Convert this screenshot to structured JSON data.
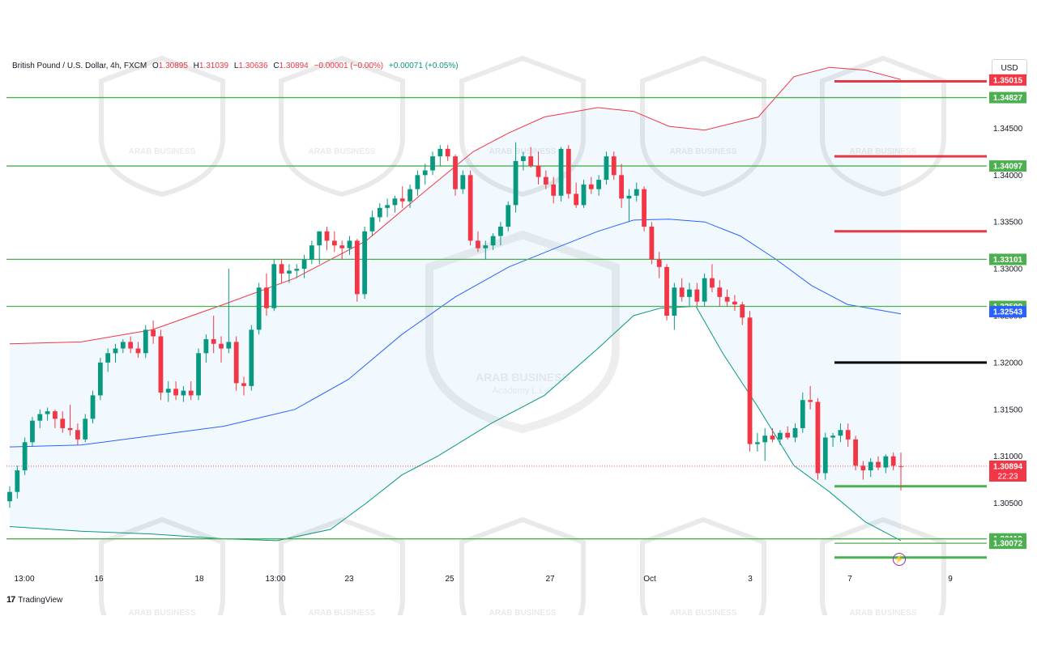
{
  "header": {
    "symbol": "British Pound / U.S. Dollar, 4h, FXCM",
    "open_label": "O",
    "open": "1.30895",
    "high_label": "H",
    "high": "1.31039",
    "low_label": "L",
    "low": "1.30636",
    "close_label": "C",
    "close": "1.30894",
    "change": "−0.00001 (−0.00%)",
    "change2": "+0.00071 (+0.05%)"
  },
  "currency_button": "USD",
  "branding": {
    "logo_text": "TradingView",
    "watermark_text": "ARAB BUSINESS",
    "watermark_sub": "Academy L.L.C"
  },
  "colors": {
    "up": "#089981",
    "down": "#f23645",
    "bb_upper": "#f23645",
    "bb_lower": "#089981",
    "bb_basis": "#2962ff",
    "bb_fill": "#2196f3",
    "support": "#4caf50",
    "resistance": "#e53945",
    "pivot": "#000000"
  },
  "chart_data": {
    "type": "candlestick",
    "symbol": "GBPUSD",
    "timeframe": "4h",
    "ylim": [
      1.2965,
      1.3535
    ],
    "y_ticks": [
      "1.35000",
      "1.34500",
      "1.34000",
      "1.33500",
      "1.33000",
      "1.32500",
      "1.32000",
      "1.31500",
      "1.31000",
      "1.30500"
    ],
    "x_ticks": [
      "13:00",
      "16",
      "18",
      "13:00",
      "23",
      "25",
      "27",
      "Oct",
      "3",
      "7",
      "9"
    ],
    "candles": [
      [
        1.3052,
        1.3068,
        1.3045,
        1.3062
      ],
      [
        1.3062,
        1.309,
        1.3055,
        1.3085
      ],
      [
        1.3085,
        1.312,
        1.308,
        1.3115
      ],
      [
        1.3115,
        1.3142,
        1.311,
        1.3138
      ],
      [
        1.3138,
        1.315,
        1.313,
        1.3145
      ],
      [
        1.3145,
        1.3152,
        1.3138,
        1.3148
      ],
      [
        1.3148,
        1.315,
        1.313,
        1.314
      ],
      [
        1.314,
        1.3148,
        1.3125,
        1.313
      ],
      [
        1.313,
        1.3155,
        1.3122,
        1.3128
      ],
      [
        1.3128,
        1.3135,
        1.3112,
        1.3118
      ],
      [
        1.3118,
        1.3145,
        1.3115,
        1.314
      ],
      [
        1.314,
        1.317,
        1.3135,
        1.3165
      ],
      [
        1.3165,
        1.3205,
        1.316,
        1.32
      ],
      [
        1.32,
        1.3215,
        1.319,
        1.321
      ],
      [
        1.321,
        1.322,
        1.32,
        1.3215
      ],
      [
        1.3215,
        1.3225,
        1.321,
        1.3222
      ],
      [
        1.3222,
        1.3228,
        1.321,
        1.3215
      ],
      [
        1.3215,
        1.3222,
        1.3205,
        1.321
      ],
      [
        1.321,
        1.324,
        1.3205,
        1.3235
      ],
      [
        1.3235,
        1.3245,
        1.322,
        1.3228
      ],
      [
        1.3228,
        1.3235,
        1.316,
        1.3168
      ],
      [
        1.3168,
        1.318,
        1.3158,
        1.3172
      ],
      [
        1.3172,
        1.318,
        1.316,
        1.3165
      ],
      [
        1.3165,
        1.3175,
        1.3158,
        1.317
      ],
      [
        1.317,
        1.318,
        1.316,
        1.3165
      ],
      [
        1.3165,
        1.3215,
        1.316,
        1.321
      ],
      [
        1.321,
        1.323,
        1.32,
        1.3225
      ],
      [
        1.3225,
        1.325,
        1.321,
        1.322
      ],
      [
        1.322,
        1.3228,
        1.32,
        1.3215
      ],
      [
        1.3215,
        1.33,
        1.321,
        1.3222
      ],
      [
        1.3222,
        1.3228,
        1.317,
        1.3178
      ],
      [
        1.3178,
        1.3185,
        1.3165,
        1.3175
      ],
      [
        1.3175,
        1.324,
        1.317,
        1.3235
      ],
      [
        1.3235,
        1.3285,
        1.323,
        1.328
      ],
      [
        1.328,
        1.3295,
        1.325,
        1.3258
      ],
      [
        1.3258,
        1.331,
        1.3255,
        1.3305
      ],
      [
        1.3305,
        1.331,
        1.3285,
        1.3295
      ],
      [
        1.3295,
        1.3305,
        1.3285,
        1.3298
      ],
      [
        1.3298,
        1.3305,
        1.329,
        1.33
      ],
      [
        1.33,
        1.3315,
        1.329,
        1.331
      ],
      [
        1.331,
        1.333,
        1.3305,
        1.3325
      ],
      [
        1.3325,
        1.334,
        1.3305,
        1.334
      ],
      [
        1.334,
        1.3345,
        1.332,
        1.333
      ],
      [
        1.333,
        1.334,
        1.3318,
        1.3325
      ],
      [
        1.3325,
        1.333,
        1.331,
        1.3322
      ],
      [
        1.3322,
        1.3335,
        1.3315,
        1.333
      ],
      [
        1.333,
        1.3332,
        1.3265,
        1.3273
      ],
      [
        1.3273,
        1.3345,
        1.3268,
        1.334
      ],
      [
        1.334,
        1.3362,
        1.3335,
        1.3355
      ],
      [
        1.3355,
        1.337,
        1.335,
        1.3365
      ],
      [
        1.3365,
        1.3375,
        1.3355,
        1.3368
      ],
      [
        1.3368,
        1.3378,
        1.336,
        1.3375
      ],
      [
        1.3375,
        1.3388,
        1.3365,
        1.3372
      ],
      [
        1.3372,
        1.339,
        1.3365,
        1.3385
      ],
      [
        1.3385,
        1.3405,
        1.3378,
        1.34
      ],
      [
        1.34,
        1.3412,
        1.339,
        1.3405
      ],
      [
        1.3405,
        1.3425,
        1.34,
        1.342
      ],
      [
        1.342,
        1.3432,
        1.341,
        1.3428
      ],
      [
        1.3428,
        1.3432,
        1.3415,
        1.342
      ],
      [
        1.342,
        1.3422,
        1.3378,
        1.3385
      ],
      [
        1.3385,
        1.3405,
        1.338,
        1.34
      ],
      [
        1.34,
        1.3405,
        1.3325,
        1.333
      ],
      [
        1.333,
        1.334,
        1.3318,
        1.3322
      ],
      [
        1.3322,
        1.333,
        1.331,
        1.3325
      ],
      [
        1.3325,
        1.3338,
        1.332,
        1.3335
      ],
      [
        1.3335,
        1.335,
        1.3325,
        1.3345
      ],
      [
        1.3345,
        1.3372,
        1.334,
        1.3368
      ],
      [
        1.3368,
        1.3435,
        1.336,
        1.3415
      ],
      [
        1.3415,
        1.3425,
        1.3405,
        1.342
      ],
      [
        1.342,
        1.343,
        1.3408,
        1.341
      ],
      [
        1.341,
        1.3425,
        1.339,
        1.3398
      ],
      [
        1.3398,
        1.3405,
        1.3385,
        1.339
      ],
      [
        1.339,
        1.3398,
        1.337,
        1.3378
      ],
      [
        1.3378,
        1.343,
        1.3372,
        1.3428
      ],
      [
        1.3428,
        1.3432,
        1.3375,
        1.338
      ],
      [
        1.338,
        1.3392,
        1.3365,
        1.3368
      ],
      [
        1.3368,
        1.3395,
        1.3365,
        1.339
      ],
      [
        1.339,
        1.3398,
        1.338,
        1.3385
      ],
      [
        1.3385,
        1.34,
        1.3378,
        1.3395
      ],
      [
        1.3395,
        1.3425,
        1.339,
        1.342
      ],
      [
        1.342,
        1.3425,
        1.3395,
        1.34
      ],
      [
        1.34,
        1.3412,
        1.3365,
        1.3375
      ],
      [
        1.3375,
        1.3385,
        1.335,
        1.3378
      ],
      [
        1.3378,
        1.3392,
        1.3372,
        1.3385
      ],
      [
        1.3385,
        1.3388,
        1.334,
        1.3345
      ],
      [
        1.3345,
        1.335,
        1.3305,
        1.331
      ],
      [
        1.331,
        1.3318,
        1.329,
        1.3302
      ],
      [
        1.3302,
        1.3305,
        1.3245,
        1.325
      ],
      [
        1.325,
        1.3285,
        1.3235,
        1.328
      ],
      [
        1.328,
        1.329,
        1.3265,
        1.327
      ],
      [
        1.327,
        1.3285,
        1.326,
        1.3278
      ],
      [
        1.3278,
        1.3285,
        1.326,
        1.3265
      ],
      [
        1.3265,
        1.3295,
        1.326,
        1.329
      ],
      [
        1.329,
        1.3305,
        1.3275,
        1.328
      ],
      [
        1.328,
        1.3288,
        1.326,
        1.327
      ],
      [
        1.327,
        1.3278,
        1.326,
        1.3265
      ],
      [
        1.3265,
        1.3272,
        1.3255,
        1.3262
      ],
      [
        1.3262,
        1.3265,
        1.324,
        1.3248
      ],
      [
        1.3248,
        1.3255,
        1.3105,
        1.3113
      ],
      [
        1.3113,
        1.3125,
        1.3105,
        1.3115
      ],
      [
        1.3115,
        1.313,
        1.3095,
        1.3122
      ],
      [
        1.3122,
        1.313,
        1.3115,
        1.3118
      ],
      [
        1.3118,
        1.3128,
        1.3112,
        1.3125
      ],
      [
        1.3125,
        1.3132,
        1.3118,
        1.312
      ],
      [
        1.312,
        1.3135,
        1.3115,
        1.313
      ],
      [
        1.313,
        1.3168,
        1.3125,
        1.316
      ],
      [
        1.316,
        1.3175,
        1.315,
        1.3158
      ],
      [
        1.3158,
        1.3162,
        1.3075,
        1.3082
      ],
      [
        1.3082,
        1.3125,
        1.3075,
        1.312
      ],
      [
        1.312,
        1.3125,
        1.311,
        1.3122
      ],
      [
        1.3122,
        1.3135,
        1.3115,
        1.3128
      ],
      [
        1.3128,
        1.3135,
        1.311,
        1.3118
      ],
      [
        1.3118,
        1.3122,
        1.3085,
        1.309
      ],
      [
        1.309,
        1.3095,
        1.3075,
        1.3085
      ],
      [
        1.3085,
        1.3098,
        1.3078,
        1.3094
      ],
      [
        1.3094,
        1.31,
        1.3085,
        1.3088
      ],
      [
        1.3088,
        1.3102,
        1.3082,
        1.31
      ],
      [
        1.31,
        1.3104,
        1.3085,
        1.309
      ],
      [
        1.30895,
        1.31039,
        1.30636,
        1.30894
      ]
    ],
    "bollinger": {
      "upper": [
        [
          0,
          1.322
        ],
        [
          0.08,
          1.3222
        ],
        [
          0.16,
          1.3235
        ],
        [
          0.24,
          1.3262
        ],
        [
          0.32,
          1.329
        ],
        [
          0.4,
          1.333
        ],
        [
          0.46,
          1.3378
        ],
        [
          0.52,
          1.3425
        ],
        [
          0.56,
          1.3445
        ],
        [
          0.6,
          1.3462
        ],
        [
          0.66,
          1.3472
        ],
        [
          0.7,
          1.3468
        ],
        [
          0.74,
          1.3452
        ],
        [
          0.78,
          1.3448
        ],
        [
          0.84,
          1.3462
        ],
        [
          0.88,
          1.3505
        ],
        [
          0.92,
          1.3515
        ],
        [
          0.96,
          1.3512
        ],
        [
          1.0,
          1.3502
        ]
      ],
      "basis": [
        [
          0,
          1.311
        ],
        [
          0.08,
          1.3112
        ],
        [
          0.16,
          1.3122
        ],
        [
          0.24,
          1.3132
        ],
        [
          0.32,
          1.315
        ],
        [
          0.38,
          1.3182
        ],
        [
          0.44,
          1.323
        ],
        [
          0.5,
          1.327
        ],
        [
          0.56,
          1.3302
        ],
        [
          0.62,
          1.3325
        ],
        [
          0.66,
          1.334
        ],
        [
          0.7,
          1.3352
        ],
        [
          0.74,
          1.3353
        ],
        [
          0.78,
          1.335
        ],
        [
          0.82,
          1.3335
        ],
        [
          0.86,
          1.331
        ],
        [
          0.9,
          1.3282
        ],
        [
          0.94,
          1.3262
        ],
        [
          1.0,
          1.3252
        ]
      ],
      "lower": [
        [
          0,
          1.3025
        ],
        [
          0.08,
          1.302
        ],
        [
          0.16,
          1.3017
        ],
        [
          0.24,
          1.3012
        ],
        [
          0.3,
          1.301
        ],
        [
          0.36,
          1.3022
        ],
        [
          0.4,
          1.305
        ],
        [
          0.44,
          1.308
        ],
        [
          0.48,
          1.31
        ],
        [
          0.54,
          1.3135
        ],
        [
          0.6,
          1.3165
        ],
        [
          0.66,
          1.3215
        ],
        [
          0.7,
          1.325
        ],
        [
          0.73,
          1.3258
        ],
        [
          0.77,
          1.326
        ],
        [
          0.8,
          1.321
        ],
        [
          0.84,
          1.3152
        ],
        [
          0.88,
          1.309
        ],
        [
          0.92,
          1.3062
        ],
        [
          0.96,
          1.303
        ],
        [
          1.0,
          1.301
        ]
      ]
    },
    "horizontal_levels": [
      {
        "label": "1.34827",
        "value": 1.34827,
        "color": "#4caf50",
        "full_width": true
      },
      {
        "label": "1.34097",
        "value": 1.34097,
        "color": "#4caf50",
        "full_width": true
      },
      {
        "label": "1.33101",
        "value": 1.33101,
        "color": "#4caf50",
        "full_width": true
      },
      {
        "label": "1.32599",
        "value": 1.32599,
        "color": "#4caf50",
        "full_width": true
      },
      {
        "label": "1.30119",
        "value": 1.30119,
        "color": "#4caf50",
        "full_width": true
      },
      {
        "label": "1.30072",
        "value": 1.30072,
        "color": "#4caf50",
        "full_width": false
      }
    ],
    "segment_levels": [
      {
        "value": 1.35,
        "color": "#e53945"
      },
      {
        "value": 1.342,
        "color": "#e53945"
      },
      {
        "value": 1.334,
        "color": "#e53945"
      },
      {
        "value": 1.32,
        "color": "#000000"
      },
      {
        "value": 1.3068,
        "color": "#4caf50"
      },
      {
        "value": 1.2992,
        "color": "#4caf50"
      }
    ],
    "price_tags": [
      {
        "label": "1.35015",
        "value": 1.35015,
        "color": "#f23645"
      },
      {
        "label": "1.32543",
        "value": 1.32543,
        "color": "#2962ff"
      },
      {
        "label": "1.30894",
        "value": 1.30894,
        "color": "#f23645",
        "sub": "22:23"
      }
    ],
    "last_price": 1.30894
  }
}
